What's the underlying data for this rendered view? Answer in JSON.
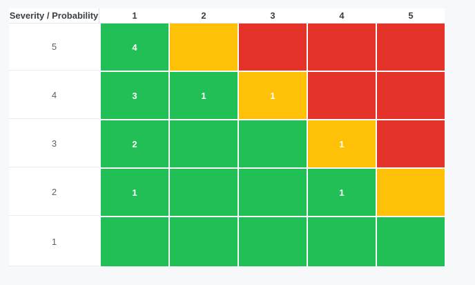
{
  "page": {
    "background": "#f7f8f9",
    "surface": "#ffffff"
  },
  "colors": {
    "green": "#21bf55",
    "yellow": "#ffc107",
    "red": "#e43329"
  },
  "matrix": {
    "header": {
      "corner_label": "Severity / Probability",
      "columns": [
        "1",
        "2",
        "3",
        "4",
        "5"
      ]
    },
    "rows": [
      {
        "label": "5",
        "cells": [
          {
            "color": "green",
            "value": "4"
          },
          {
            "color": "yellow",
            "value": ""
          },
          {
            "color": "red",
            "value": ""
          },
          {
            "color": "red",
            "value": ""
          },
          {
            "color": "red",
            "value": ""
          }
        ]
      },
      {
        "label": "4",
        "cells": [
          {
            "color": "green",
            "value": "3"
          },
          {
            "color": "green",
            "value": "1"
          },
          {
            "color": "yellow",
            "value": "1"
          },
          {
            "color": "red",
            "value": ""
          },
          {
            "color": "red",
            "value": ""
          }
        ]
      },
      {
        "label": "3",
        "cells": [
          {
            "color": "green",
            "value": "2"
          },
          {
            "color": "green",
            "value": ""
          },
          {
            "color": "green",
            "value": ""
          },
          {
            "color": "yellow",
            "value": "1"
          },
          {
            "color": "red",
            "value": ""
          }
        ]
      },
      {
        "label": "2",
        "cells": [
          {
            "color": "green",
            "value": "1"
          },
          {
            "color": "green",
            "value": ""
          },
          {
            "color": "green",
            "value": ""
          },
          {
            "color": "green",
            "value": "1"
          },
          {
            "color": "yellow",
            "value": ""
          }
        ]
      },
      {
        "label": "1",
        "cells": [
          {
            "color": "green",
            "value": ""
          },
          {
            "color": "green",
            "value": ""
          },
          {
            "color": "green",
            "value": ""
          },
          {
            "color": "green",
            "value": ""
          },
          {
            "color": "green",
            "value": ""
          }
        ]
      }
    ]
  },
  "chart_data": {
    "type": "heatmap",
    "title": "",
    "corner_header": "Severity / Probability",
    "x_axis_label": "Probability",
    "y_axis_label": "Severity",
    "x_categories": [
      "1",
      "2",
      "3",
      "4",
      "5"
    ],
    "y_categories": [
      "5",
      "4",
      "3",
      "2",
      "1"
    ],
    "cell_counts": [
      [
        4,
        null,
        null,
        null,
        null
      ],
      [
        3,
        1,
        1,
        null,
        null
      ],
      [
        2,
        null,
        null,
        1,
        null
      ],
      [
        1,
        null,
        null,
        1,
        null
      ],
      [
        null,
        null,
        null,
        null,
        null
      ]
    ],
    "cell_risk_colors": [
      [
        "green",
        "yellow",
        "red",
        "red",
        "red"
      ],
      [
        "green",
        "green",
        "yellow",
        "red",
        "red"
      ],
      [
        "green",
        "green",
        "green",
        "yellow",
        "red"
      ],
      [
        "green",
        "green",
        "green",
        "green",
        "yellow"
      ],
      [
        "green",
        "green",
        "green",
        "green",
        "green"
      ]
    ],
    "color_map": {
      "green": "#21bf55",
      "yellow": "#ffc107",
      "red": "#e43329"
    },
    "legend_position": "none",
    "grid": false
  }
}
